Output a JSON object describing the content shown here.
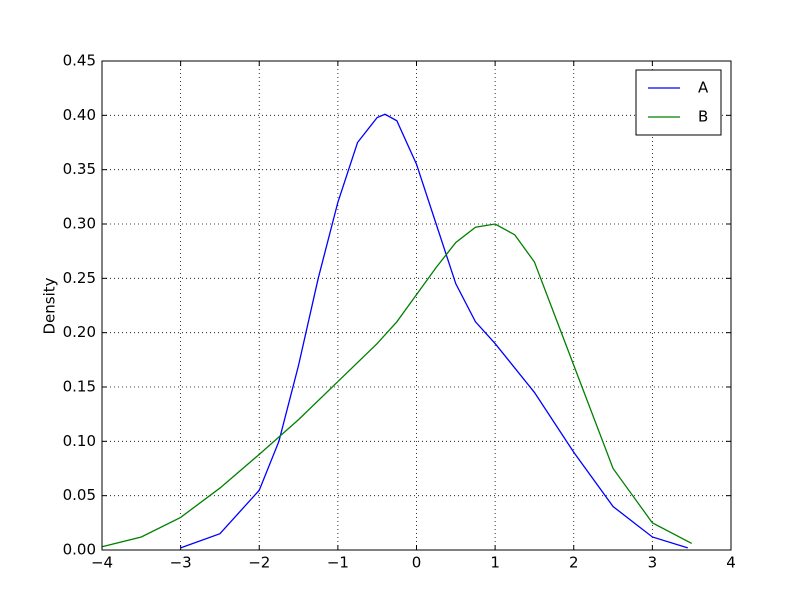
{
  "chart_data": {
    "type": "line",
    "y_label": "Density",
    "series": [
      {
        "name": "A",
        "color": "#0000ff",
        "x": [
          -3,
          -2.5,
          -2,
          -1.75,
          -1.5,
          -1.25,
          -1,
          -0.75,
          -0.5,
          -0.4,
          -0.25,
          0,
          0.25,
          0.5,
          0.75,
          1,
          1.5,
          2,
          2.5,
          3,
          3.45
        ],
        "values": [
          0.002,
          0.015,
          0.055,
          0.1,
          0.17,
          0.25,
          0.32,
          0.375,
          0.398,
          0.401,
          0.395,
          0.355,
          0.3,
          0.245,
          0.21,
          0.19,
          0.145,
          0.09,
          0.04,
          0.012,
          0.002
        ]
      },
      {
        "name": "B",
        "color": "#008000",
        "x": [
          -4,
          -3.5,
          -3,
          -2.5,
          -2,
          -1.5,
          -1,
          -0.5,
          -0.25,
          0,
          0.25,
          0.5,
          0.75,
          1,
          1.25,
          1.5,
          2,
          2.5,
          3,
          3.5
        ],
        "values": [
          0.003,
          0.012,
          0.03,
          0.057,
          0.088,
          0.12,
          0.155,
          0.19,
          0.21,
          0.235,
          0.26,
          0.283,
          0.297,
          0.3,
          0.29,
          0.265,
          0.17,
          0.075,
          0.025,
          0.006
        ]
      }
    ],
    "xlim": [
      -4,
      4
    ],
    "xticks": [
      {
        "value": -4,
        "label": "−4"
      },
      {
        "value": -3,
        "label": "−3"
      },
      {
        "value": -2,
        "label": "−2"
      },
      {
        "value": -1,
        "label": "−1"
      },
      0,
      1,
      2,
      3,
      4
    ],
    "ylim": [
      0,
      0.45
    ],
    "yticks": [
      {
        "value": 0,
        "label": "0.00"
      },
      {
        "value": 0.05,
        "label": "0.05"
      },
      {
        "value": 0.1,
        "label": "0.10"
      },
      {
        "value": 0.15,
        "label": "0.15"
      },
      {
        "value": 0.2,
        "label": "0.20"
      },
      {
        "value": 0.25,
        "label": "0.25"
      },
      {
        "value": 0.3,
        "label": "0.30"
      },
      {
        "value": 0.35,
        "label": "0.35"
      },
      {
        "value": 0.4,
        "label": "0.40"
      },
      {
        "value": 0.45,
        "label": "0.45"
      }
    ],
    "grid": true,
    "legend": "upper right"
  }
}
